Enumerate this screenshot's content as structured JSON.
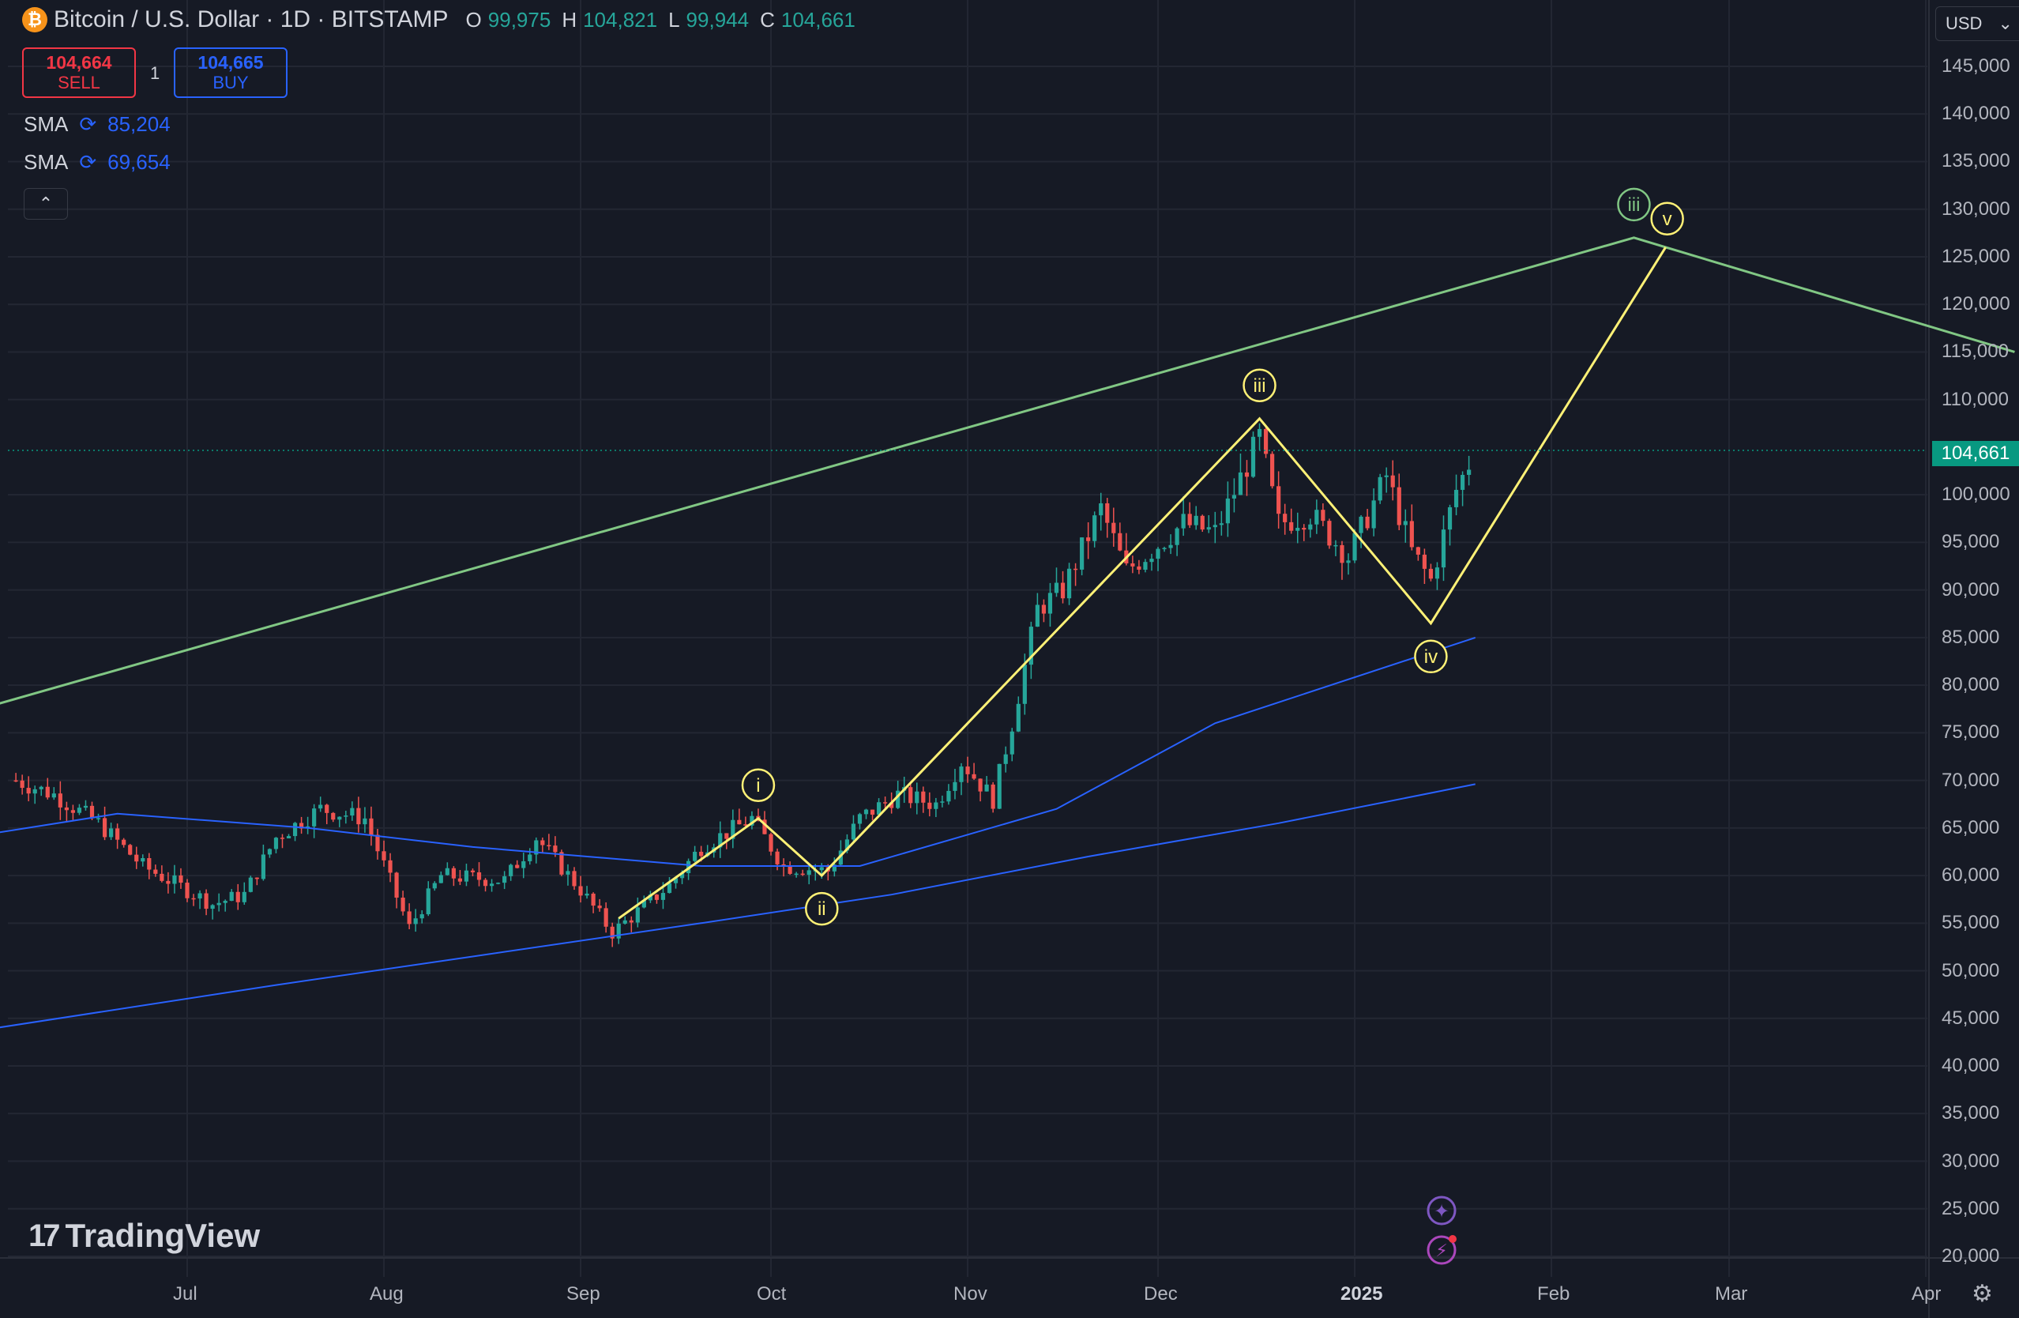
{
  "header": {
    "symbol_icon": "bitcoin-icon",
    "symbol_glyph": "₿",
    "title": "Bitcoin / U.S. Dollar · 1D · BITSTAMP",
    "ohlc": {
      "o_label": "O",
      "o_value": "99,975",
      "h_label": "H",
      "h_value": "104,821",
      "l_label": "L",
      "l_value": "99,944",
      "c_label": "C",
      "c_value": "104,661"
    }
  },
  "trade": {
    "sell_price": "104,664",
    "sell_label": "SELL",
    "quantity": "1",
    "buy_price": "104,665",
    "buy_label": "BUY"
  },
  "indicators": [
    {
      "name": "SMA",
      "value": "85,204",
      "icon": "refresh-icon"
    },
    {
      "name": "SMA",
      "value": "69,654",
      "icon": "refresh-icon"
    }
  ],
  "collapse_glyph": "⌃",
  "currency": {
    "label": "USD",
    "chevron": "⌄"
  },
  "price_axis": {
    "labels": [
      "145,000",
      "140,000",
      "135,000",
      "130,000",
      "125,000",
      "120,000",
      "115,000",
      "110,000",
      "100,000",
      "95,000",
      "90,000",
      "85,000",
      "80,000",
      "75,000",
      "70,000",
      "65,000",
      "60,000",
      "55,000",
      "50,000",
      "45,000",
      "40,000",
      "35,000",
      "30,000",
      "25,000",
      "20,000"
    ],
    "current_price": "104,661"
  },
  "time_axis": {
    "labels": [
      "Jul",
      "Aug",
      "Sep",
      "Oct",
      "Nov",
      "Dec",
      "2025",
      "Feb",
      "Mar",
      "Apr"
    ]
  },
  "wave_labels": {
    "yellow": [
      "i",
      "ii",
      "iii",
      "iv",
      "v"
    ],
    "green": [
      "iii"
    ]
  },
  "branding": {
    "logo_mark": "17",
    "logo_text": "TradingView"
  },
  "colors": {
    "background": "#161a25",
    "up_candle": "#26a69a",
    "down_candle": "#ef5350",
    "sma_line": "#2962ff",
    "wave_yellow": "#fff176",
    "trend_green": "#81c784",
    "price_badge": "#089981"
  },
  "chart_data": {
    "type": "candlestick",
    "title": "Bitcoin / U.S. Dollar · 1D · BITSTAMP",
    "xlabel": "",
    "ylabel": "",
    "ylim": [
      20000,
      147000
    ],
    "x_ticks": [
      "Jul",
      "Aug",
      "Sep",
      "Oct",
      "Nov",
      "Dec",
      "2025",
      "Feb",
      "Mar",
      "Apr"
    ],
    "y_ticks": [
      145000,
      140000,
      135000,
      130000,
      125000,
      120000,
      115000,
      110000,
      100000,
      95000,
      90000,
      85000,
      80000,
      75000,
      70000,
      65000,
      60000,
      55000,
      50000,
      45000,
      40000,
      35000,
      30000,
      25000,
      20000
    ],
    "price_path": [
      [
        "2024-06-04",
        70000
      ],
      [
        "2024-06-10",
        68500
      ],
      [
        "2024-06-17",
        65500
      ],
      [
        "2024-06-24",
        61000
      ],
      [
        "2024-07-05",
        57000
      ],
      [
        "2024-07-10",
        58000
      ],
      [
        "2024-07-15",
        64000
      ],
      [
        "2024-07-22",
        67000
      ],
      [
        "2024-07-29",
        66000
      ],
      [
        "2024-08-05",
        54500
      ],
      [
        "2024-08-10",
        60000
      ],
      [
        "2024-08-20",
        59500
      ],
      [
        "2024-08-25",
        64000
      ],
      [
        "2024-09-01",
        58500
      ],
      [
        "2024-09-06",
        54000
      ],
      [
        "2024-09-15",
        59000
      ],
      [
        "2024-09-20",
        63000
      ],
      [
        "2024-09-28",
        66000
      ],
      [
        "2024-10-03",
        61000
      ],
      [
        "2024-10-10",
        60500
      ],
      [
        "2024-10-15",
        66000
      ],
      [
        "2024-10-21",
        68500
      ],
      [
        "2024-10-27",
        67500
      ],
      [
        "2024-10-31",
        72000
      ],
      [
        "2024-11-05",
        68000
      ],
      [
        "2024-11-08",
        76000
      ],
      [
        "2024-11-12",
        88000
      ],
      [
        "2024-11-16",
        90000
      ],
      [
        "2024-11-22",
        98500
      ],
      [
        "2024-11-26",
        92000
      ],
      [
        "2024-12-05",
        97000
      ],
      [
        "2024-12-10",
        96000
      ],
      [
        "2024-12-17",
        106000
      ],
      [
        "2024-12-20",
        97000
      ],
      [
        "2024-12-25",
        98000
      ],
      [
        "2024-12-31",
        93500
      ],
      [
        "2025-01-06",
        102000
      ],
      [
        "2025-01-10",
        94000
      ],
      [
        "2025-01-13",
        91000
      ],
      [
        "2025-01-17",
        100500
      ],
      [
        "2025-01-20",
        104661
      ]
    ],
    "sma_series": [
      {
        "name": "SMA",
        "value": 85204,
        "points": [
          [
            "2024-06-01",
            64500
          ],
          [
            "2024-06-20",
            66500
          ],
          [
            "2024-07-20",
            65000
          ],
          [
            "2024-08-15",
            63000
          ],
          [
            "2024-09-20",
            61000
          ],
          [
            "2024-10-15",
            61000
          ],
          [
            "2024-11-15",
            67000
          ],
          [
            "2024-12-10",
            76000
          ],
          [
            "2025-01-20",
            85000
          ]
        ]
      },
      {
        "name": "SMA",
        "value": 69654,
        "points": [
          [
            "2024-06-01",
            44000
          ],
          [
            "2024-07-15",
            48500
          ],
          [
            "2024-08-15",
            51500
          ],
          [
            "2024-09-20",
            55000
          ],
          [
            "2024-10-20",
            58000
          ],
          [
            "2024-11-20",
            62000
          ],
          [
            "2024-12-20",
            65500
          ],
          [
            "2025-01-20",
            69600
          ]
        ]
      }
    ],
    "wave_path": [
      {
        "label": "",
        "date": "2024-09-07",
        "price": 55500
      },
      {
        "label": "i",
        "date": "2024-09-29",
        "price": 66000
      },
      {
        "label": "ii",
        "date": "2024-10-09",
        "price": 60000
      },
      {
        "label": "iii",
        "date": "2024-12-17",
        "price": 108000
      },
      {
        "label": "iv",
        "date": "2025-01-13",
        "price": 86500
      },
      {
        "label": "v",
        "date": "2025-02-19",
        "price": 126000
      }
    ],
    "trend_path": [
      {
        "label": "",
        "date": "2024-06-01",
        "price": 78000
      },
      {
        "label": "iii",
        "date": "2025-02-14",
        "price": 127000
      },
      {
        "label": "",
        "date": "2025-04-15",
        "price": 115000
      }
    ],
    "current_price": 104661
  }
}
